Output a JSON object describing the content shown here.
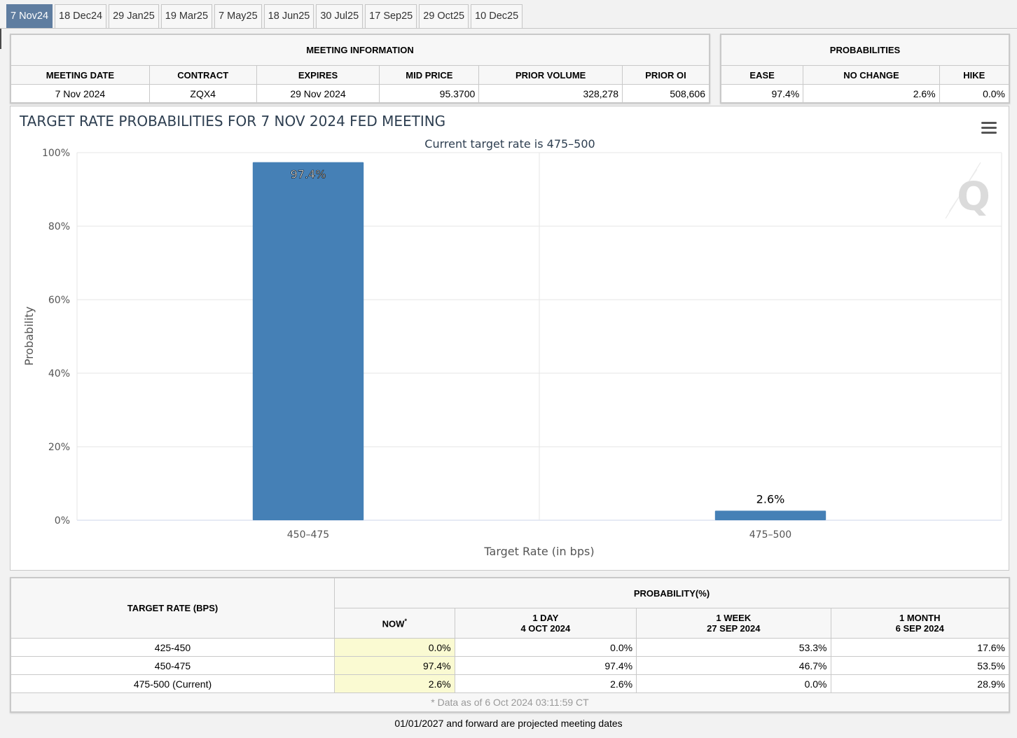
{
  "tabs": [
    "7 Nov24",
    "18 Dec24",
    "29 Jan25",
    "19 Mar25",
    "7 May25",
    "18 Jun25",
    "30 Jul25",
    "17 Sep25",
    "29 Oct25",
    "10 Dec25"
  ],
  "active_tab": 0,
  "meeting": {
    "title": "MEETING INFORMATION",
    "headers": [
      "MEETING DATE",
      "CONTRACT",
      "EXPIRES",
      "MID PRICE",
      "PRIOR VOLUME",
      "PRIOR OI"
    ],
    "values": [
      "7 Nov 2024",
      "ZQX4",
      "29 Nov 2024",
      "95.3700",
      "328,278",
      "508,606"
    ]
  },
  "probabilities": {
    "title": "PROBABILITIES",
    "headers": [
      "EASE",
      "NO CHANGE",
      "HIKE"
    ],
    "values": [
      "97.4%",
      "2.6%",
      "0.0%"
    ]
  },
  "chart": {
    "title": "TARGET RATE PROBABILITIES FOR 7 NOV 2024 FED MEETING",
    "menu_icon": "hamburger-menu-icon",
    "watermark_icon": "q-logo-icon",
    "bar_color": "#4580b6"
  },
  "chart_data": {
    "type": "bar",
    "title": "TARGET RATE PROBABILITIES FOR 7 NOV 2024 FED MEETING",
    "subtitle": "Current target rate is 475–500",
    "categories": [
      "450–475",
      "475–500"
    ],
    "values": [
      97.4,
      2.6
    ],
    "data_labels": [
      "97.4%",
      "2.6%"
    ],
    "xlabel": "Target Rate (in bps)",
    "ylabel": "Probability",
    "ylim": [
      0,
      100
    ],
    "yticks": [
      "0%",
      "20%",
      "40%",
      "60%",
      "80%",
      "100%"
    ],
    "grid": true
  },
  "rates_table": {
    "row_header": "TARGET RATE (BPS)",
    "prob_header": "PROBABILITY(%)",
    "columns": [
      {
        "line1": "NOW",
        "line2": "",
        "sup": "*"
      },
      {
        "line1": "1 DAY",
        "line2": "4 OCT 2024"
      },
      {
        "line1": "1 WEEK",
        "line2": "27 SEP 2024"
      },
      {
        "line1": "1 MONTH",
        "line2": "6 SEP 2024"
      }
    ],
    "rows": [
      {
        "rate": "425-450",
        "values": [
          "0.0%",
          "0.0%",
          "53.3%",
          "17.6%"
        ]
      },
      {
        "rate": "450-475",
        "values": [
          "97.4%",
          "97.4%",
          "46.7%",
          "53.5%"
        ]
      },
      {
        "rate": "475-500 (Current)",
        "values": [
          "2.6%",
          "2.6%",
          "0.0%",
          "28.9%"
        ]
      }
    ],
    "footnote": "* Data as of 6 Oct 2024 03:11:59 CT"
  },
  "projected_note": "01/01/2027 and forward are projected meeting dates"
}
